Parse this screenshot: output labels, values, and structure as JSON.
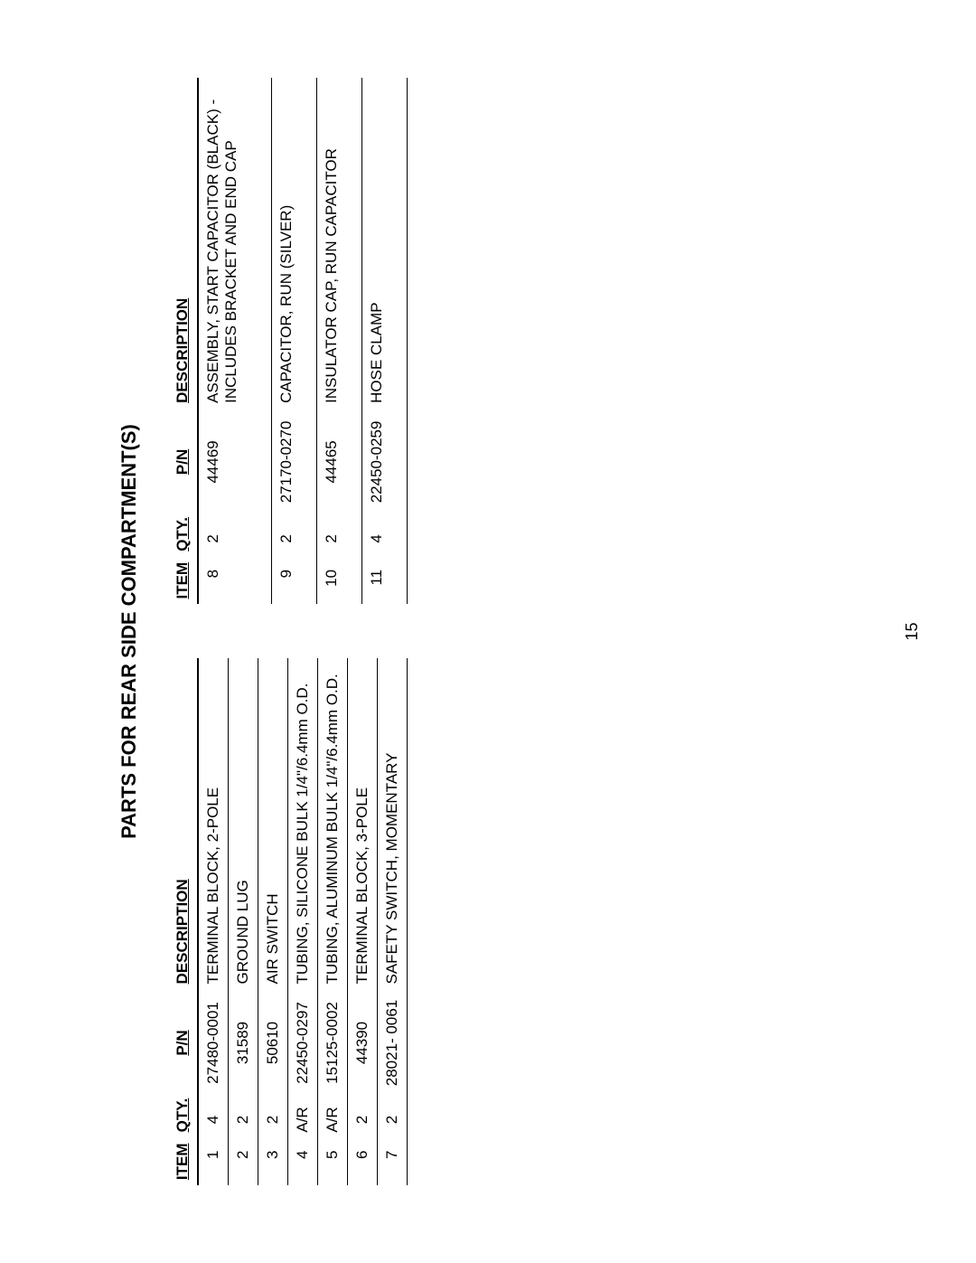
{
  "title": "PARTS FOR REAR SIDE COMPARTMENT(S)",
  "page_number": "15",
  "headers": {
    "item": "ITEM",
    "qty": "QTY.",
    "pn": "P/N",
    "description": "DESCRIPTION"
  },
  "left_table": {
    "rows": [
      {
        "item": "1",
        "qty": "4",
        "pn": "27480-0001",
        "desc": "TERMINAL BLOCK, 2-POLE"
      },
      {
        "item": "2",
        "qty": "2",
        "pn": "31589",
        "desc": "GROUND LUG"
      },
      {
        "item": "3",
        "qty": "2",
        "pn": "50610",
        "desc": "AIR SWITCH"
      },
      {
        "item": "4",
        "qty": "A/R",
        "pn": "22450-0297",
        "desc": "TUBING, SILICONE BULK 1/4\"/6.4mm O.D."
      },
      {
        "item": "5",
        "qty": "A/R",
        "pn": "15125-0002",
        "desc": "TUBING, ALUMINUM BULK 1/4\"/6.4mm O.D."
      },
      {
        "item": "6",
        "qty": "2",
        "pn": "44390",
        "desc": "TERMINAL BLOCK, 3-POLE"
      },
      {
        "item": "7",
        "qty": "2",
        "pn": "28021- 0061",
        "desc": "SAFETY SWITCH, MOMENTARY"
      }
    ]
  },
  "right_table": {
    "rows": [
      {
        "item": "8",
        "qty": "2",
        "pn": "44469",
        "desc": "ASSEMBLY, START CAPACITOR (BLACK) - INCLUDES BRACKET AND END CAP"
      },
      {
        "item": "9",
        "qty": "2",
        "pn": "27170-0270",
        "desc": "CAPACITOR, RUN (SILVER)"
      },
      {
        "item": "10",
        "qty": "2",
        "pn": "44465",
        "desc": "INSULATOR CAP, RUN CAPACITOR"
      },
      {
        "item": "11",
        "qty": "4",
        "pn": "22450-0259",
        "desc": "HOSE CLAMP"
      }
    ]
  },
  "styling": {
    "background_color": "#ffffff",
    "text_color": "#000000",
    "border_color": "#000000",
    "font_family": "Arial",
    "title_fontsize": 22,
    "body_fontsize": 17
  }
}
